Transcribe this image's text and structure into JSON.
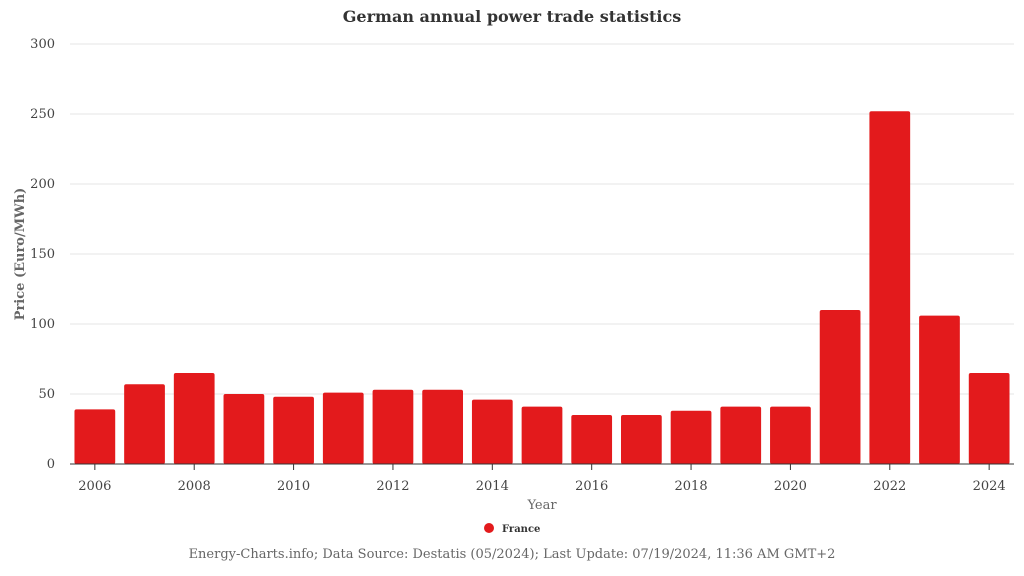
{
  "chart_data": {
    "type": "bar",
    "title": "German annual power trade statistics",
    "xlabel": "Year",
    "ylabel": "Price (Euro/MWh)",
    "ylim": [
      0,
      300
    ],
    "yticks": [
      0,
      50,
      100,
      150,
      200,
      250,
      300
    ],
    "categories": [
      "2006",
      "2007",
      "2008",
      "2009",
      "2010",
      "2011",
      "2012",
      "2013",
      "2014",
      "2015",
      "2016",
      "2017",
      "2018",
      "2019",
      "2020",
      "2021",
      "2022",
      "2023",
      "2024"
    ],
    "xtick_labels": [
      "2006",
      "2008",
      "2010",
      "2012",
      "2014",
      "2016",
      "2018",
      "2020",
      "2022",
      "2024"
    ],
    "series": [
      {
        "name": "France",
        "color": "#e31a1c",
        "values": [
          39,
          57,
          65,
          50,
          48,
          51,
          53,
          53,
          46,
          41,
          35,
          35,
          38,
          41,
          41,
          110,
          252,
          106,
          65
        ]
      }
    ],
    "legend_position": "bottom-center",
    "grid": true
  },
  "credits": "Energy-Charts.info; Data Source: Destatis (05/2024); Last Update: 07/19/2024, 11:36 AM GMT+2"
}
